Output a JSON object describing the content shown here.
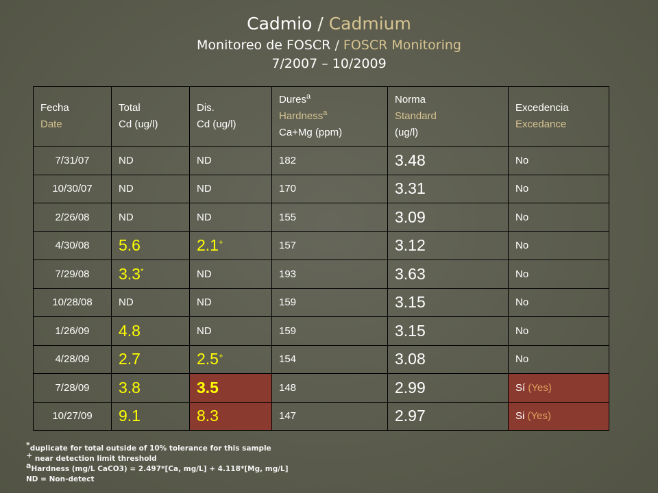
{
  "title": {
    "line1_es": "Cadmio",
    "slash": " / ",
    "line1_en": "Cadmium",
    "line2_es": "Monitoreo de FOSCR",
    "line2_en": "FOSCR Monitoring",
    "line3": "7/2007 – 10/2009"
  },
  "table": {
    "headers": {
      "date_es": "Fecha",
      "date_en": "Date",
      "total_1": "Total",
      "total_2": "Cd (ug/l)",
      "dis_1": "Dis.",
      "dis_2": "Cd (ug/l)",
      "hard_es": "Dures",
      "hard_en": "Hardness",
      "hard_sup": "a",
      "hard_3": "Ca+Mg (ppm)",
      "std_es": "Norma",
      "std_en": "Standard",
      "std_3": "(ug/l)",
      "exc_es": "Excedencia",
      "exc_en": "Excedance"
    },
    "rows": [
      {
        "date": "7/31/07",
        "total": "ND",
        "dis": "ND",
        "hard": "182",
        "std": "3.48",
        "exc": "No"
      },
      {
        "date": "10/30/07",
        "total": "ND",
        "dis": "ND",
        "hard": "170",
        "std": "3.31",
        "exc": "No"
      },
      {
        "date": "2/26/08",
        "total": "ND",
        "dis": "ND",
        "hard": "155",
        "std": "3.09",
        "exc": "No"
      },
      {
        "date": "4/30/08",
        "total": "5.6",
        "dis": "2.1",
        "dis_sup": "+",
        "hard": "157",
        "std": "3.12",
        "exc": "No"
      },
      {
        "date": "7/29/08",
        "total": "3.3",
        "total_sup": "*",
        "dis": "ND",
        "hard": "193",
        "std": "3.63",
        "exc": "No"
      },
      {
        "date": "10/28/08",
        "total": "ND",
        "dis": "ND",
        "hard": "159",
        "std": "3.15",
        "exc": "No"
      },
      {
        "date": "1/26/09",
        "total": "4.8",
        "dis": "ND",
        "hard": "159",
        "std": "3.15",
        "exc": "No"
      },
      {
        "date": "4/28/09",
        "total": "2.7",
        "dis": "2.5",
        "dis_sup": "+",
        "hard": "154",
        "std": "3.08",
        "exc": "No"
      },
      {
        "date": "7/28/09",
        "total": "3.8",
        "dis": "3.5",
        "hard": "148",
        "std": "2.99",
        "exc_es": "Sí",
        "exc_en": "(Yes)"
      },
      {
        "date": "10/27/09",
        "total": "9.1",
        "dis": "8.3",
        "hard": "147",
        "std": "2.97",
        "exc_es": "Si",
        "exc_en": "(Yes)"
      }
    ]
  },
  "notes": {
    "n1_sym": "*",
    "n1": "duplicate for total outside of 10% tolerance for this sample",
    "n2_sym": "+",
    "n2": " near detection limit threshold",
    "n3_sym": "a",
    "n3": "Hardness (mg/L CaCO3) = 2.497*[Ca, mg/L] + 4.118*[Mg, mg/L]",
    "n4": "ND = Non-detect"
  },
  "colors": {
    "background": "#5d5e4e",
    "accent_tan": "#d6c391",
    "highlight_yellow": "#ffff00",
    "exceedance_red": "#8b3a30"
  }
}
